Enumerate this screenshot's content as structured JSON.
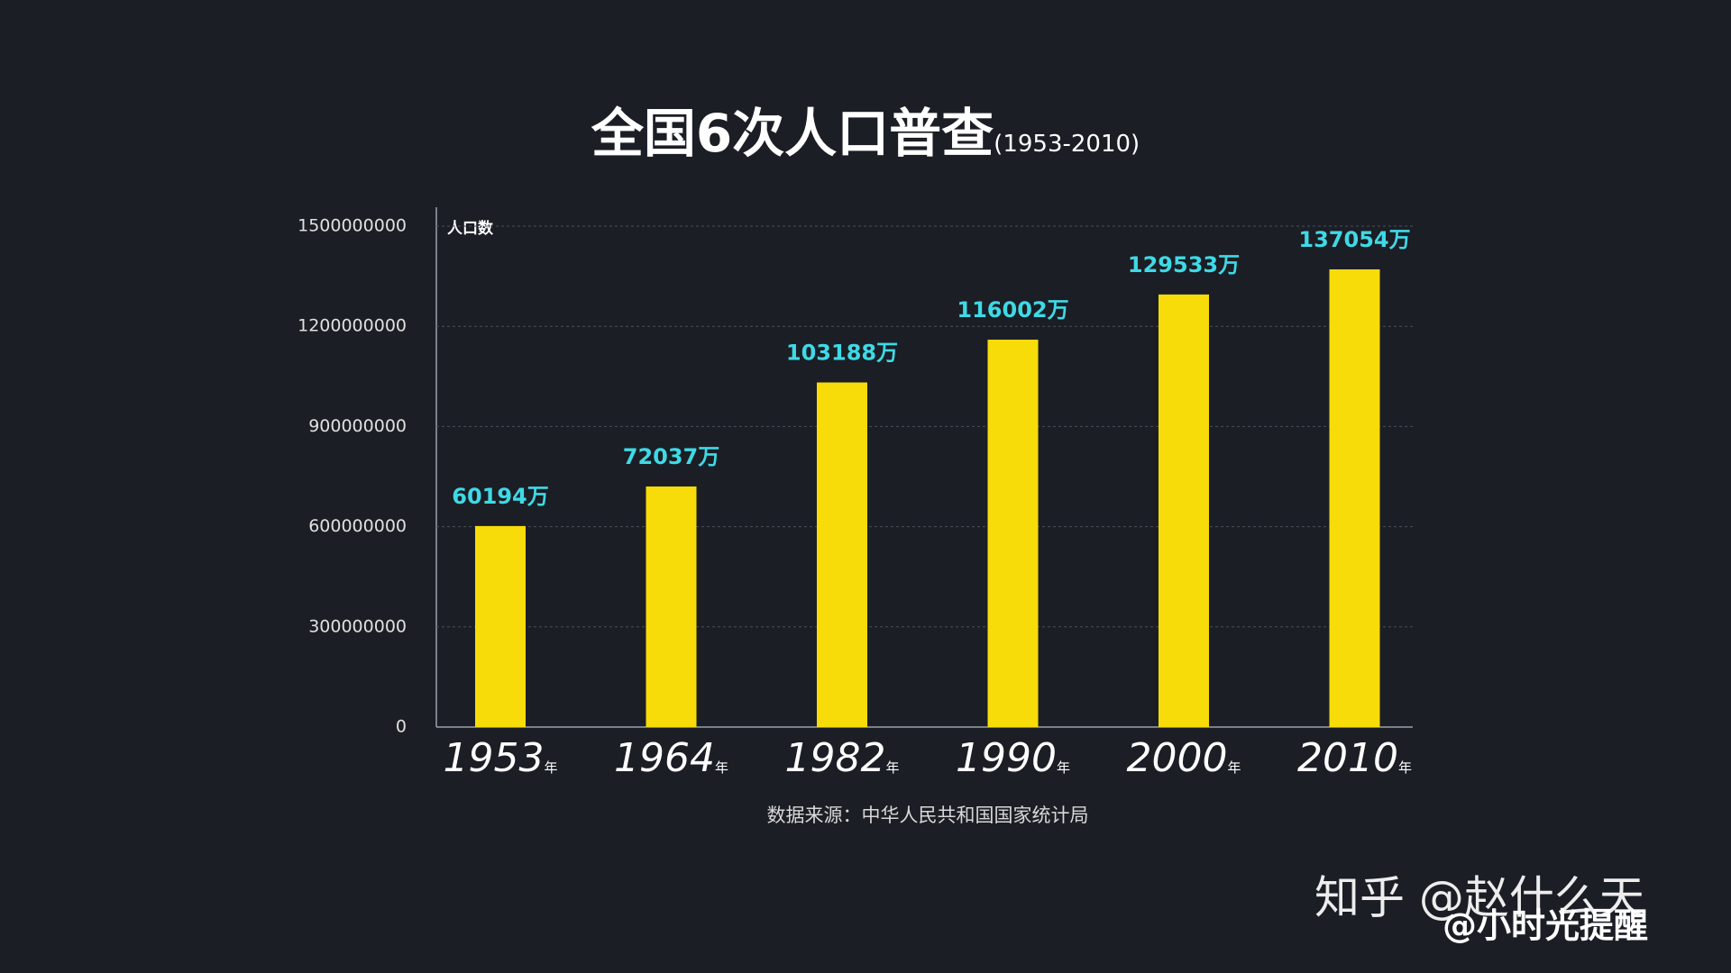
{
  "chart_data": {
    "type": "bar",
    "title": "全国6次人口普查",
    "subtitle": "(1953-2010)",
    "y_axis_label": "人口数",
    "categories": [
      "1953",
      "1964",
      "1982",
      "1990",
      "2000",
      "2010"
    ],
    "category_suffix": "年",
    "values": [
      601940000,
      720370000,
      1031880000,
      1160020000,
      1295330000,
      1370540000
    ],
    "value_labels": [
      "60194万",
      "72037万",
      "103188万",
      "116002万",
      "129533万",
      "137054万"
    ],
    "color": "#f7dc0a",
    "label_color": "#3fd9e6",
    "ylim": [
      0,
      1500000000
    ],
    "yticks": [
      0,
      300000000,
      600000000,
      900000000,
      1200000000,
      1500000000
    ],
    "grid": true,
    "source": "数据来源：中华人民共和国国家统计局"
  },
  "watermark": {
    "line1": "知乎 @赵什么天",
    "line2": "@小时光提醒"
  }
}
